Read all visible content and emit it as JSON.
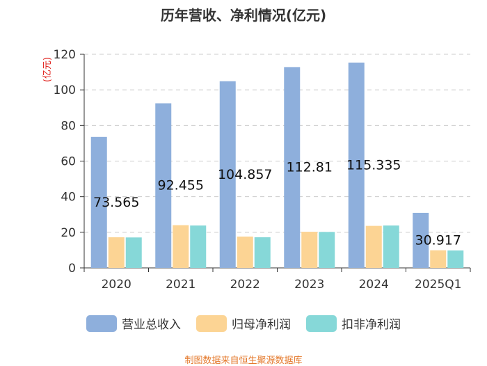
{
  "colors": {
    "revenue": "#8eafdc",
    "parent_net_profit": "#fcd494",
    "deducted_net_profit": "#86d8d8",
    "grid": "#cccccc",
    "axis": "#333333"
  },
  "chart_data": {
    "type": "bar",
    "title": "历年营收、净利情况(亿元)",
    "ylabel": "(亿元)",
    "xlabel": "",
    "categories": [
      "2020",
      "2021",
      "2022",
      "2023",
      "2024",
      "2025Q1"
    ],
    "ylim": [
      0,
      120
    ],
    "yticks": [
      0,
      20,
      40,
      60,
      80,
      100,
      120
    ],
    "grid": true,
    "legend_position": "bottom",
    "series": [
      {
        "name": "营业总收入",
        "values": [
          73.565,
          92.455,
          104.857,
          112.81,
          115.335,
          30.917
        ]
      },
      {
        "name": "归母净利润",
        "values": [
          17.2,
          24.0,
          17.6,
          20.3,
          23.6,
          9.9
        ]
      },
      {
        "name": "扣非净利润",
        "values": [
          17.1,
          23.8,
          17.2,
          20.2,
          23.8,
          9.8
        ]
      }
    ],
    "data_labels": [
      "73.565",
      "92.455",
      "104.857",
      "112.81",
      "115.335",
      "30.917"
    ]
  },
  "source": "制图数据来自恒生聚源数据库"
}
